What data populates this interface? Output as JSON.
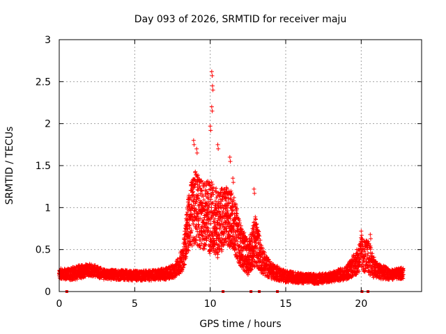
{
  "chart_data": {
    "type": "scatter",
    "title": "Day 093 of 2026, SRMTID for receiver maju",
    "xlabel": "GPS time / hours",
    "ylabel": "SRMTID / TECUs",
    "xlim": [
      0,
      24
    ],
    "ylim": [
      0,
      3
    ],
    "xticks": [
      0,
      5,
      10,
      15,
      20
    ],
    "yticks": [
      0,
      0.5,
      1,
      1.5,
      2,
      2.5,
      3
    ],
    "xtick_labels": [
      "0",
      "5",
      "10",
      "15",
      "20"
    ],
    "ytick_labels": [
      "0",
      "0.5",
      "1",
      "1.5",
      "2",
      "2.5",
      "3"
    ],
    "grid": true,
    "marker": "+",
    "color": "#ff0000",
    "gap_markers_x": [
      0.5,
      10.85,
      12.7,
      13.25,
      14.45,
      20.05,
      20.45
    ],
    "envelope": [
      {
        "x": 0.0,
        "base": 0.22,
        "spread": 0.06
      },
      {
        "x": 0.5,
        "base": 0.2,
        "spread": 0.07
      },
      {
        "x": 1.0,
        "base": 0.22,
        "spread": 0.08
      },
      {
        "x": 1.5,
        "base": 0.24,
        "spread": 0.08
      },
      {
        "x": 2.0,
        "base": 0.26,
        "spread": 0.07
      },
      {
        "x": 2.5,
        "base": 0.24,
        "spread": 0.07
      },
      {
        "x": 3.0,
        "base": 0.2,
        "spread": 0.06
      },
      {
        "x": 4.0,
        "base": 0.2,
        "spread": 0.06
      },
      {
        "x": 5.0,
        "base": 0.19,
        "spread": 0.06
      },
      {
        "x": 6.0,
        "base": 0.19,
        "spread": 0.06
      },
      {
        "x": 7.0,
        "base": 0.21,
        "spread": 0.07
      },
      {
        "x": 7.7,
        "base": 0.25,
        "spread": 0.08
      },
      {
        "x": 8.2,
        "base": 0.4,
        "spread": 0.15
      },
      {
        "x": 8.6,
        "base": 0.85,
        "spread": 0.35
      },
      {
        "x": 9.0,
        "base": 1.0,
        "spread": 0.45
      },
      {
        "x": 9.5,
        "base": 0.9,
        "spread": 0.4
      },
      {
        "x": 10.0,
        "base": 0.9,
        "spread": 0.45
      },
      {
        "x": 10.5,
        "base": 0.8,
        "spread": 0.4
      },
      {
        "x": 11.0,
        "base": 0.9,
        "spread": 0.35
      },
      {
        "x": 11.5,
        "base": 0.85,
        "spread": 0.35
      },
      {
        "x": 12.0,
        "base": 0.55,
        "spread": 0.25
      },
      {
        "x": 12.5,
        "base": 0.4,
        "spread": 0.2
      },
      {
        "x": 13.0,
        "base": 0.6,
        "spread": 0.3
      },
      {
        "x": 13.5,
        "base": 0.35,
        "spread": 0.15
      },
      {
        "x": 14.0,
        "base": 0.25,
        "spread": 0.1
      },
      {
        "x": 15.0,
        "base": 0.18,
        "spread": 0.07
      },
      {
        "x": 16.0,
        "base": 0.16,
        "spread": 0.06
      },
      {
        "x": 17.0,
        "base": 0.15,
        "spread": 0.06
      },
      {
        "x": 18.0,
        "base": 0.17,
        "spread": 0.06
      },
      {
        "x": 19.0,
        "base": 0.22,
        "spread": 0.08
      },
      {
        "x": 19.7,
        "base": 0.35,
        "spread": 0.15
      },
      {
        "x": 20.0,
        "base": 0.45,
        "spread": 0.2
      },
      {
        "x": 20.5,
        "base": 0.4,
        "spread": 0.2
      },
      {
        "x": 21.0,
        "base": 0.25,
        "spread": 0.1
      },
      {
        "x": 22.0,
        "base": 0.2,
        "spread": 0.06
      },
      {
        "x": 22.8,
        "base": 0.22,
        "spread": 0.07
      }
    ],
    "peaks": [
      {
        "x": 8.9,
        "y": 1.8
      },
      {
        "x": 9.1,
        "y": 1.7
      },
      {
        "x": 10.1,
        "y": 2.62
      },
      {
        "x": 10.15,
        "y": 2.45
      },
      {
        "x": 10.1,
        "y": 2.2
      },
      {
        "x": 10.0,
        "y": 1.97
      },
      {
        "x": 10.5,
        "y": 1.75
      },
      {
        "x": 11.3,
        "y": 1.6
      },
      {
        "x": 11.5,
        "y": 1.35
      },
      {
        "x": 12.9,
        "y": 1.22
      },
      {
        "x": 20.0,
        "y": 0.72
      },
      {
        "x": 20.6,
        "y": 0.68
      }
    ]
  }
}
